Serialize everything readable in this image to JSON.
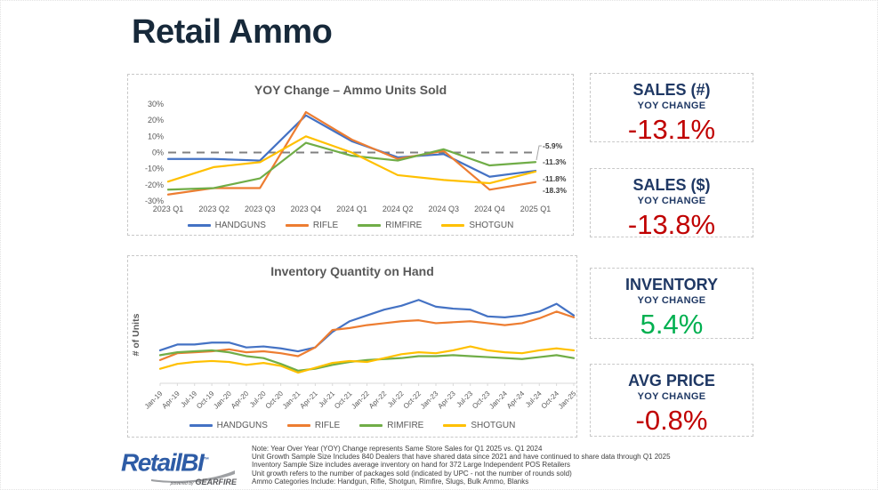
{
  "slide": {
    "title": "Retail Ammo"
  },
  "colors": {
    "handguns": "#4472C4",
    "rifle": "#ED7D31",
    "rimfire": "#70AD47",
    "shotgun": "#FFC000",
    "header_navy": "#1F3864",
    "negative_red": "#C00000",
    "positive_green": "#00B050",
    "chart_text_gray": "#595959"
  },
  "chart_data": [
    {
      "id": "yoy",
      "type": "line",
      "title": "YOY Change – Ammo Units Sold",
      "categories": [
        "2023 Q1",
        "2023 Q2",
        "2023 Q3",
        "2023 Q4",
        "2024 Q1",
        "2024 Q2",
        "2024 Q3",
        "2024 Q4",
        "2025 Q1"
      ],
      "series": [
        {
          "name": "HANDGUNS",
          "color": "#4472C4",
          "values": [
            -4,
            -4,
            -5,
            23,
            7,
            -3,
            -1,
            -15,
            -11.3
          ]
        },
        {
          "name": "RIFLE",
          "color": "#ED7D31",
          "values": [
            -26,
            -22,
            -22,
            25,
            8,
            -4,
            1,
            -23,
            -18.3
          ]
        },
        {
          "name": "RIMFIRE",
          "color": "#70AD47",
          "values": [
            -23,
            -22,
            -16,
            6,
            -2,
            -5,
            2,
            -8,
            -5.9
          ]
        },
        {
          "name": "SHOTGUN",
          "color": "#FFC000",
          "values": [
            -18,
            -9,
            -6,
            10,
            0,
            -14,
            -17,
            -19,
            -11.8
          ]
        }
      ],
      "ylim": [
        -30,
        30
      ],
      "ytick_labels": [
        "30%",
        "20%",
        "10%",
        "0%",
        "-10%",
        "-20%",
        "-30%"
      ],
      "zero_line_dashed": true,
      "grid": false,
      "legend_position": "bottom",
      "end_labels": [
        "-5.9%",
        "-11.3%",
        "-11.8%",
        "-18.3%"
      ]
    },
    {
      "id": "inv",
      "type": "line",
      "title": "Inventory Quantity on Hand",
      "ylabel": "# of Units",
      "yaxis_note": "no numeric y-axis labels shown; values are relative units (0-100 estimate)",
      "categories": [
        "Jan-19",
        "Apr-19",
        "Jul-19",
        "Oct-19",
        "Jan-20",
        "Apr-20",
        "Jul-20",
        "Oct-20",
        "Jan-21",
        "Apr-21",
        "Jul-21",
        "Oct-21",
        "Jan-22",
        "Apr-22",
        "Jul-22",
        "Oct-22",
        "Jan-23",
        "Apr-23",
        "Jul-23",
        "Oct-23",
        "Jan-24",
        "Apr-24",
        "Jul-24",
        "Oct-24",
        "Jan-25"
      ],
      "series": [
        {
          "name": "HANDGUNS",
          "color": "#4472C4",
          "values": [
            34,
            40,
            40,
            42,
            42,
            37,
            38,
            36,
            33,
            37,
            53,
            64,
            70,
            76,
            80,
            86,
            79,
            77,
            76,
            69,
            68,
            70,
            74,
            82,
            70
          ]
        },
        {
          "name": "RIFLE",
          "color": "#ED7D31",
          "values": [
            24,
            31,
            32,
            33,
            35,
            32,
            33,
            31,
            28,
            37,
            55,
            57,
            60,
            62,
            64,
            65,
            62,
            63,
            64,
            62,
            60,
            62,
            67,
            74,
            68
          ]
        },
        {
          "name": "RIMFIRE",
          "color": "#70AD47",
          "values": [
            29,
            32,
            33,
            34,
            32,
            28,
            26,
            20,
            13,
            15,
            19,
            22,
            24,
            25,
            26,
            28,
            28,
            29,
            28,
            27,
            26,
            25,
            27,
            29,
            26
          ]
        },
        {
          "name": "SHOTGUN",
          "color": "#FFC000",
          "values": [
            15,
            20,
            22,
            23,
            22,
            19,
            21,
            18,
            11,
            16,
            21,
            23,
            22,
            26,
            30,
            32,
            31,
            34,
            38,
            34,
            32,
            31,
            34,
            36,
            34
          ]
        }
      ],
      "ylim": [
        0,
        100
      ],
      "grid": false,
      "legend_position": "bottom",
      "x_labels_rotated": true
    }
  ],
  "stats": [
    {
      "title": "SALES (#)",
      "subtitle": "YOY CHANGE",
      "value": "-13.1%",
      "value_color": "#C00000"
    },
    {
      "title": "SALES ($)",
      "subtitle": "YOY CHANGE",
      "value": "-13.8%",
      "value_color": "#C00000"
    },
    {
      "title": "INVENTORY",
      "subtitle": "YOY CHANGE",
      "value": "5.4%",
      "value_color": "#00B050"
    },
    {
      "title": "AVG PRICE",
      "subtitle": "YOY CHANGE",
      "value": "-0.8%",
      "value_color": "#C00000"
    }
  ],
  "footer": {
    "logo": {
      "brand": "RetailBI",
      "tm": "™",
      "powered_by": "powered by",
      "gearfire": "GEARFIRE"
    },
    "notes": [
      "Note: Year Over Year (YOY) Change represents Same Store Sales for Q1 2025 vs. Q1 2024",
      "Unit Growth Sample Size Includes 840 Dealers that have shared data since 2021 and have continued to share data through Q1 2025",
      "Inventory Sample Size includes average inventory on hand for 372 Large Independent POS Retailers",
      "Unit growth refers to the number of packages sold (indicated by UPC - not the number of rounds sold)",
      "Ammo Categories Include: Handgun, Rifle, Shotgun, Rimfire, Slugs, Bulk Ammo, Blanks"
    ]
  }
}
